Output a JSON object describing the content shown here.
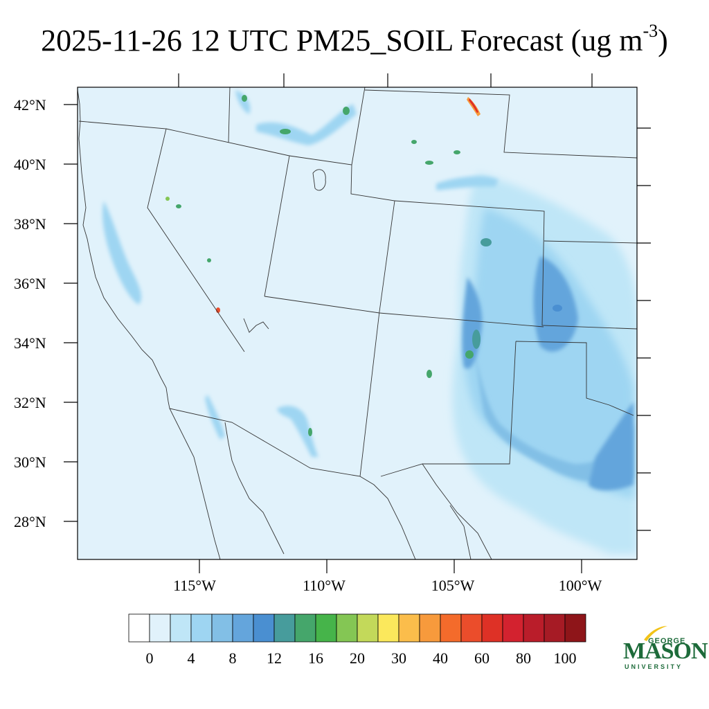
{
  "title": {
    "main": "2025-11-26 12 UTC PM25_SOIL Forecast (ug m",
    "superscript": "-3",
    "close": ")"
  },
  "map": {
    "lat_labels": [
      "42°N",
      "40°N",
      "38°N",
      "36°N",
      "34°N",
      "32°N",
      "30°N",
      "28°N"
    ],
    "lon_labels": [
      "115°W",
      "110°W",
      "105°W",
      "100°W"
    ],
    "background_color": "#e1f2fb"
  },
  "colorbar": {
    "colors": [
      "#ffffff",
      "#e1f2fb",
      "#bfe6f7",
      "#9ed5f2",
      "#82bfe6",
      "#64a5dc",
      "#4a8fd1",
      "#479c9c",
      "#45a66b",
      "#46b44a",
      "#84c654",
      "#c3d95a",
      "#fbe85c",
      "#fbbd4b",
      "#f79a3c",
      "#f46b2b",
      "#eb4d2b",
      "#de3126",
      "#d3222f",
      "#ba1d2a",
      "#a61b25",
      "#8e1519"
    ],
    "labels": [
      "0",
      "4",
      "8",
      "12",
      "16",
      "20",
      "30",
      "40",
      "60",
      "80",
      "100"
    ]
  },
  "logo": {
    "line1": "GEORGE",
    "line2": "MASON",
    "line3": "UNIVERSITY",
    "accent_color": "#f2c318",
    "brand_color": "#1d6b3a"
  }
}
